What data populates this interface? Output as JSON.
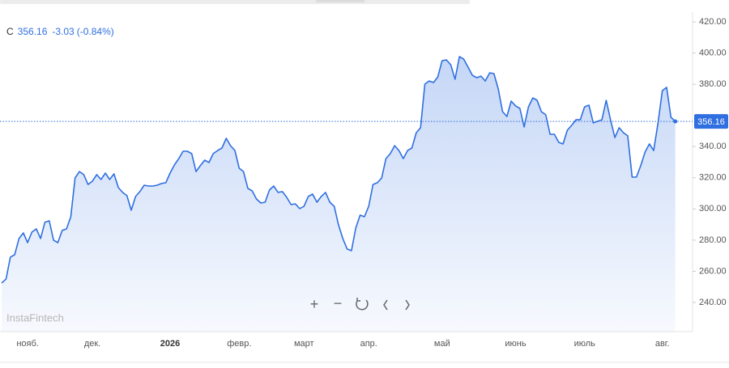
{
  "chart_data": {
    "type": "area",
    "header": {
      "symbol": "C",
      "price": 356.16,
      "change": -3.03,
      "change_pct": "(-0.84%)"
    },
    "watermark": "InstaFintech",
    "color": "#2f6fe0",
    "values": [
      252.5,
      255.1,
      269.1,
      270.6,
      281.0,
      284.6,
      278.4,
      285.1,
      287.2,
      281.0,
      291.4,
      292.4,
      280.0,
      278.4,
      286.2,
      287.2,
      295.0,
      319.9,
      324.0,
      322.0,
      315.7,
      317.8,
      322.0,
      318.9,
      323.0,
      318.9,
      322.5,
      313.7,
      310.6,
      308.5,
      299.2,
      308.0,
      311.1,
      315.2,
      314.7,
      314.7,
      315.2,
      316.3,
      316.8,
      323.0,
      328.2,
      332.3,
      337.0,
      337.0,
      335.5,
      324.0,
      327.7,
      331.3,
      329.8,
      335.5,
      337.5,
      339.1,
      345.3,
      340.6,
      337.5,
      326.1,
      324.0,
      313.2,
      311.6,
      306.4,
      303.8,
      304.3,
      312.1,
      314.7,
      310.6,
      311.1,
      307.5,
      302.8,
      303.3,
      300.2,
      301.7,
      308.0,
      309.5,
      304.3,
      308.0,
      310.6,
      304.3,
      301.7,
      289.8,
      281.0,
      274.3,
      273.2,
      287.7,
      296.0,
      295.0,
      301.7,
      315.7,
      316.8,
      319.9,
      332.3,
      335.5,
      340.6,
      337.5,
      332.3,
      337.5,
      339.1,
      348.9,
      352.1,
      380.1,
      382.1,
      381.1,
      384.7,
      395.1,
      395.6,
      392.5,
      383.2,
      397.7,
      396.1,
      391.0,
      385.8,
      384.2,
      385.2,
      382.1,
      387.3,
      386.8,
      377.0,
      362.4,
      359.3,
      369.2,
      366.1,
      364.5,
      352.6,
      365.5,
      371.2,
      369.7,
      362.4,
      360.4,
      347.9,
      347.9,
      342.7,
      341.7,
      350.5,
      353.6,
      357.2,
      357.2,
      365.5,
      366.6,
      355.2,
      356.2,
      357.2,
      369.7,
      357.2,
      345.8,
      352.1,
      348.9,
      346.9,
      320.4,
      320.4,
      327.7,
      336.5,
      341.7,
      337.5,
      355.2,
      375.9,
      378.0,
      358.8,
      356.16
    ],
    "xlim": [
      -0.4,
      160
    ],
    "xticks": [
      {
        "value": 6,
        "label": "нояб."
      },
      {
        "value": 21,
        "label": "дек."
      },
      {
        "value": 39,
        "label": "2026"
      },
      {
        "value": 55,
        "label": "февр."
      },
      {
        "value": 70,
        "label": "март"
      },
      {
        "value": 85,
        "label": "апр."
      },
      {
        "value": 102,
        "label": "май"
      },
      {
        "value": 119,
        "label": "июнь"
      },
      {
        "value": 135,
        "label": "июль"
      },
      {
        "value": 153,
        "label": "авг."
      }
    ],
    "ylim": [
      221.3,
      424.7
    ],
    "yticks": [
      {
        "value": 240,
        "label": "240.00"
      },
      {
        "value": 260,
        "label": "260.00"
      },
      {
        "value": 280,
        "label": "280.00"
      },
      {
        "value": 300,
        "label": "300.00"
      },
      {
        "value": 320,
        "label": "320.00"
      },
      {
        "value": 340,
        "label": "340.00"
      },
      {
        "value": 380,
        "label": "380.00"
      },
      {
        "value": 400,
        "label": "400.00"
      },
      {
        "value": 420,
        "label": "420.00"
      }
    ]
  }
}
